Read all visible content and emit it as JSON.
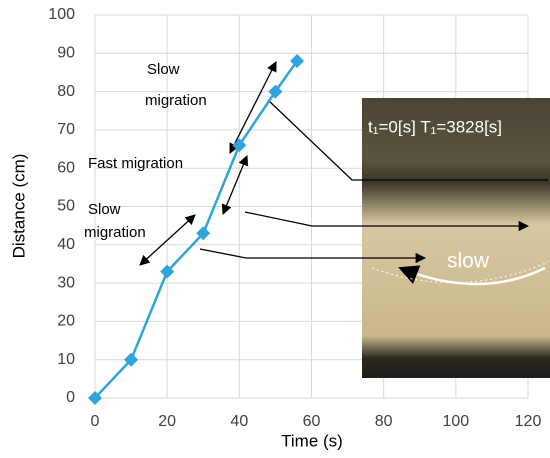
{
  "chart_data": {
    "type": "line",
    "x_label": "Time (s)",
    "y_label": "Distance (cm)",
    "x": [
      0,
      10,
      20,
      30,
      40,
      50,
      56
    ],
    "series": [
      {
        "name": "Distance",
        "color": "#2fa3dc",
        "values": [
          0,
          10,
          33,
          43,
          66,
          80,
          88
        ]
      }
    ],
    "xlim": [
      0,
      120
    ],
    "xticks": [
      0,
      20,
      40,
      60,
      80,
      100,
      120
    ],
    "ylim": [
      0,
      100
    ],
    "yticks": [
      0,
      10,
      20,
      30,
      40,
      50,
      60,
      70,
      80,
      90,
      100
    ],
    "grid": true,
    "annotations": [
      [
        "Slow",
        "migration"
      ],
      [
        "Fast migration"
      ],
      [
        "Slow",
        "migration"
      ]
    ],
    "photo_labels": [
      "t₁=0[s] T₁=3828[s]",
      "slow"
    ]
  }
}
